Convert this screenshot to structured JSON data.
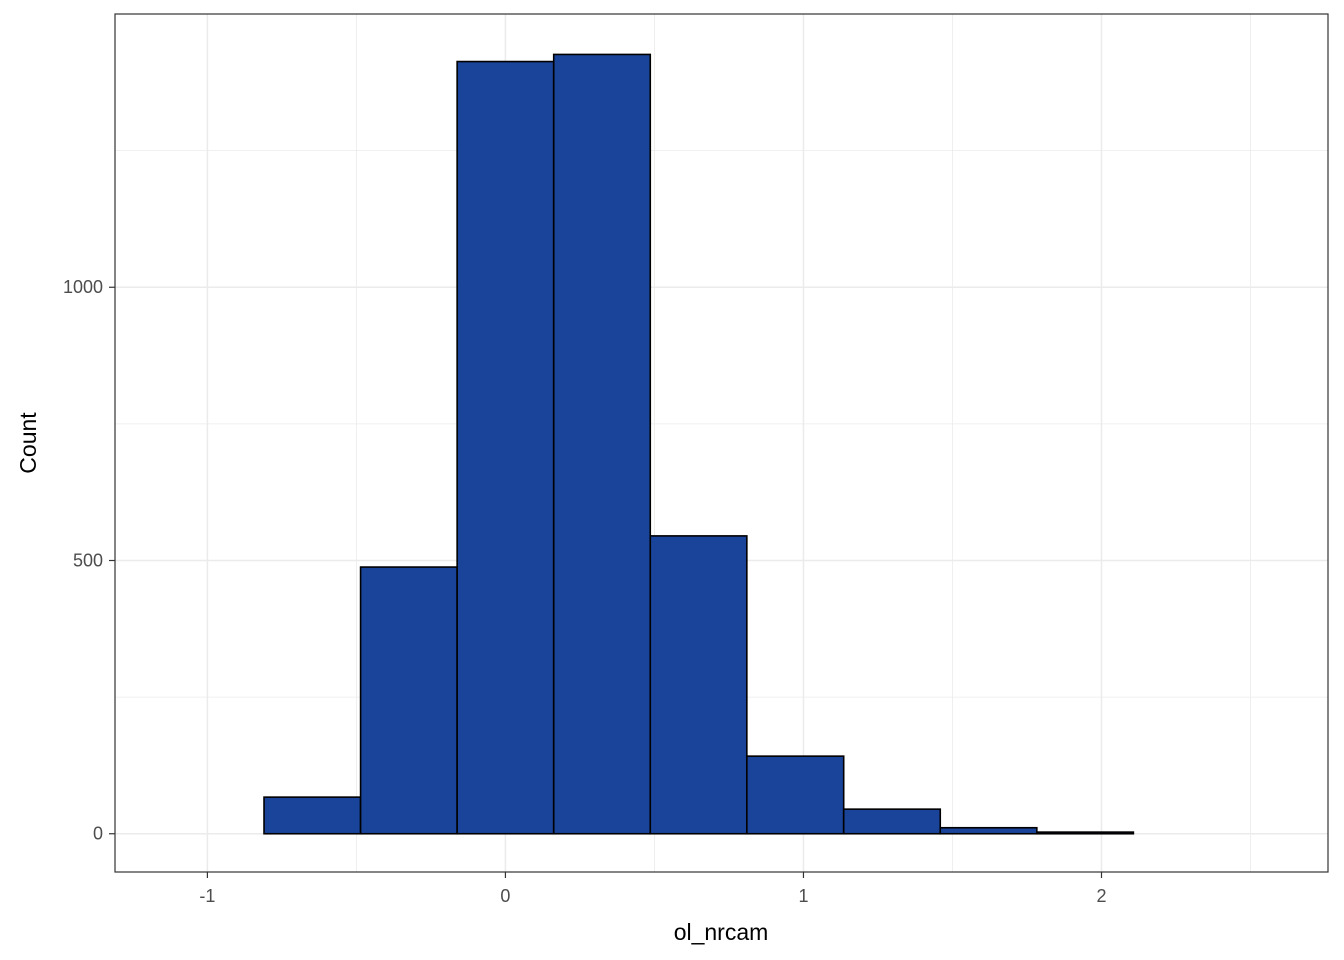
{
  "chart_data": {
    "type": "bar",
    "subtype": "histogram",
    "title": "",
    "xlabel": "ol_nrcam",
    "ylabel": "Count",
    "xlim": [
      -1.31,
      2.76
    ],
    "ylim": [
      -70,
      1500
    ],
    "x_ticks": [
      {
        "value": -1,
        "label": "-1"
      },
      {
        "value": 0,
        "label": "0"
      },
      {
        "value": 1,
        "label": "1"
      },
      {
        "value": 2,
        "label": "2"
      }
    ],
    "y_ticks": [
      {
        "value": 0,
        "label": "0"
      },
      {
        "value": 500,
        "label": "500"
      },
      {
        "value": 1000,
        "label": "1000"
      }
    ],
    "x_minor_gridlines": [
      -0.5,
      0.5,
      1.5,
      2.5
    ],
    "y_minor_gridlines": [
      250,
      750,
      1250
    ],
    "grid": true,
    "bins": [
      {
        "start": -1.135,
        "end": -0.81,
        "count": 0
      },
      {
        "start": -0.81,
        "end": -0.486,
        "count": 67
      },
      {
        "start": -0.486,
        "end": -0.162,
        "count": 488
      },
      {
        "start": -0.162,
        "end": 0.162,
        "count": 1413
      },
      {
        "start": 0.162,
        "end": 0.486,
        "count": 1426
      },
      {
        "start": 0.486,
        "end": 0.81,
        "count": 545
      },
      {
        "start": 0.81,
        "end": 1.135,
        "count": 142
      },
      {
        "start": 1.135,
        "end": 1.459,
        "count": 45
      },
      {
        "start": 1.459,
        "end": 1.783,
        "count": 11
      },
      {
        "start": 1.783,
        "end": 2.107,
        "count": 3
      },
      {
        "start": 2.107,
        "end": 2.431,
        "count": 0
      },
      {
        "start": 2.431,
        "end": 2.755,
        "count": 0
      }
    ],
    "colors": {
      "bar_fill": "#1a4499",
      "bar_outline": "#000000",
      "grid": "#ebebeb",
      "panel_border": "#333333",
      "tick_label": "#4d4d4d",
      "axis_title": "#000000"
    }
  }
}
